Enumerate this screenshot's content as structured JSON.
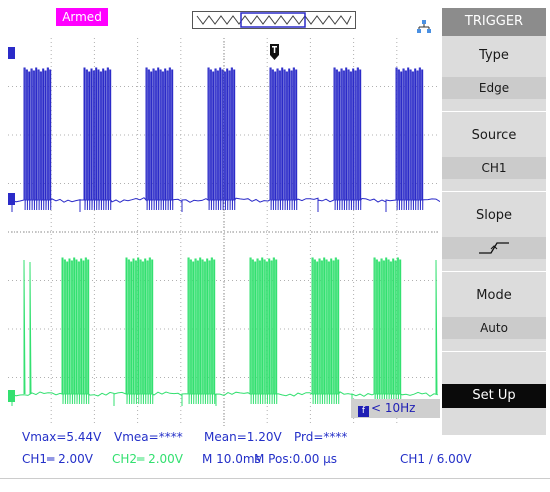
{
  "status_badge": "Armed",
  "menu": {
    "title": "TRIGGER",
    "items": [
      {
        "label": "Type",
        "value": "Edge"
      },
      {
        "label": "Source",
        "value": "CH1"
      },
      {
        "label": "Slope",
        "value": ""
      },
      {
        "label": "Mode",
        "value": "Auto"
      }
    ],
    "setup_label": "Set Up"
  },
  "frequency_readout": "< 10Hz",
  "measurements": {
    "vmax": "Vmax=5.44V",
    "vmean": "Vmea=****",
    "mean": "Mean=1.20V",
    "prd": "Prd=****"
  },
  "settings": {
    "ch1_scale": "CH1═ 2.00V",
    "ch2_scale": "CH2═ 2.00V",
    "timebase": "M 10.0ms",
    "mpos": "M Pos:0.00 μs",
    "trigger_level": "CH1 ∕ 6.00V"
  },
  "colors": {
    "ch1": "#2b2bc8",
    "ch2": "#33e070",
    "armed_bg": "#ff00ff",
    "menu_bg": "#dcdcdc",
    "menu_title_bg": "#8c8c8c",
    "text_blue": "#2430c8"
  },
  "icons": {
    "network": "network-icon",
    "trigger_position": "trigger-position-icon",
    "ch1_marker": "ch1-marker-icon",
    "ch2_marker": "ch2-marker-icon",
    "slope_rising": "rising-edge-icon",
    "frequency": "frequency-icon"
  }
}
